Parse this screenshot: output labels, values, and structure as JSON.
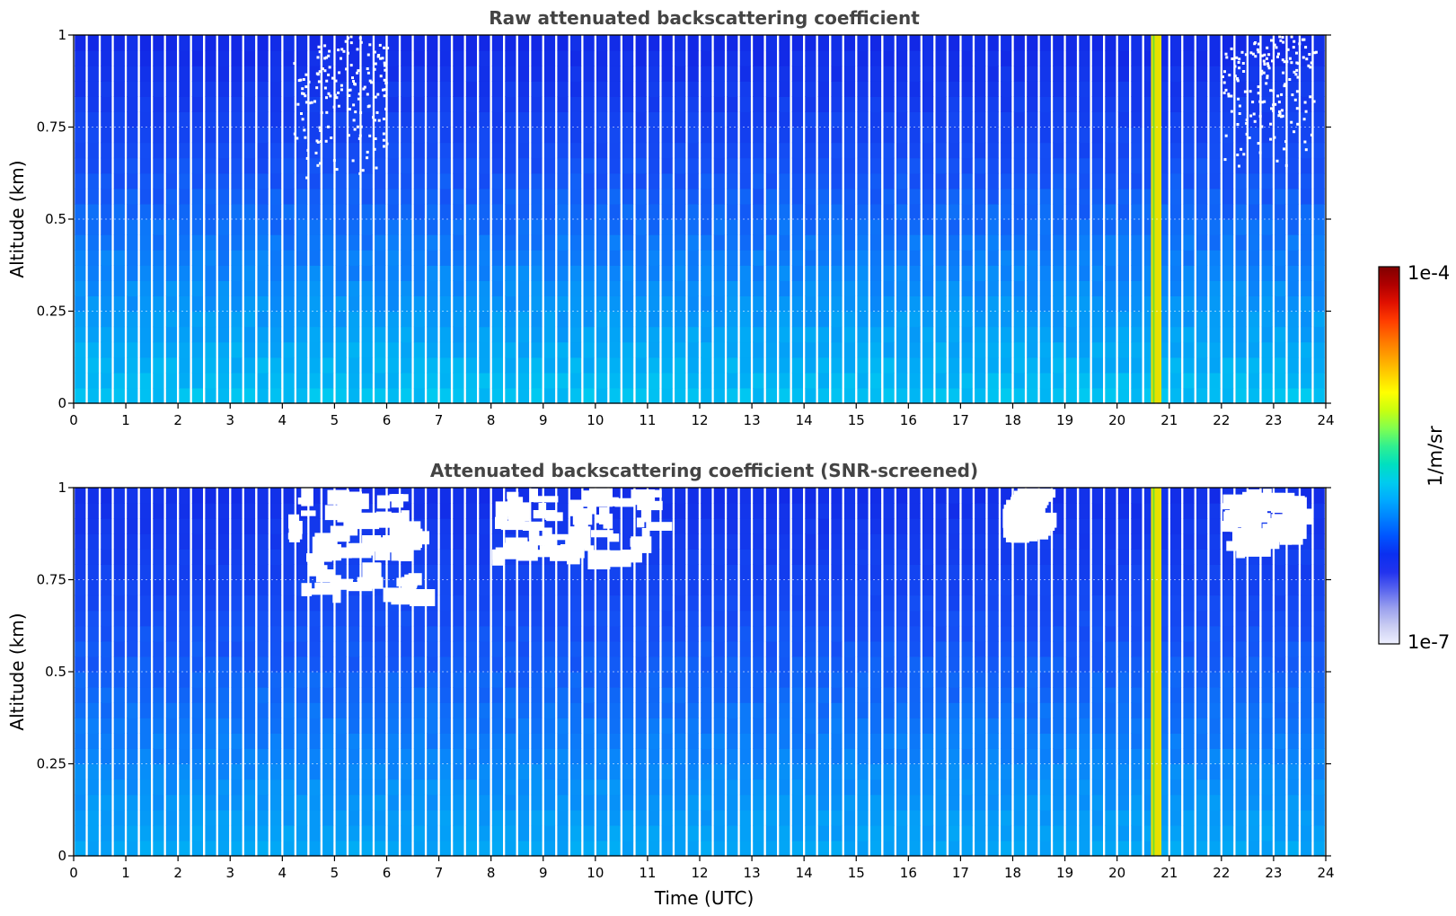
{
  "chart_data": [
    {
      "type": "heatmap",
      "title": "Raw attenuated backscattering coefficient",
      "xlabel": "",
      "ylabel": "Altitude (km)",
      "xlim": [
        0,
        24
      ],
      "ylim": [
        0,
        1
      ],
      "xticks": [
        "0",
        "1",
        "2",
        "3",
        "4",
        "5",
        "6",
        "7",
        "8",
        "9",
        "10",
        "11",
        "12",
        "13",
        "14",
        "15",
        "16",
        "17",
        "18",
        "19",
        "20",
        "21",
        "22",
        "23",
        "24"
      ],
      "yticks": [
        "0",
        "0.25",
        "0.5",
        "0.75",
        "1"
      ],
      "yticks_values": [
        0,
        0.25,
        0.5,
        0.75,
        1
      ],
      "grid": true,
      "data_end_time": 23.8,
      "profile_gaps_every_hours": 0.25,
      "features": [
        {
          "kind": "high-backscatter column",
          "time_range": [
            20.65,
            20.85
          ],
          "level": "yellow"
        },
        {
          "kind": "sparse signal / noise",
          "time_range": [
            4.2,
            6.0
          ],
          "altitude_range": [
            0.6,
            1.0
          ]
        },
        {
          "kind": "sparse signal / noise",
          "time_range": [
            22.0,
            23.8
          ],
          "altitude_range": [
            0.6,
            1.0
          ]
        }
      ]
    },
    {
      "type": "heatmap",
      "title": "Attenuated backscattering coefficient (SNR-screened)",
      "xlabel": "Time (UTC)",
      "ylabel": "Altitude (km)",
      "xlim": [
        0,
        24
      ],
      "ylim": [
        0,
        1
      ],
      "xticks": [
        "0",
        "1",
        "2",
        "3",
        "4",
        "5",
        "6",
        "7",
        "8",
        "9",
        "10",
        "11",
        "12",
        "13",
        "14",
        "15",
        "16",
        "17",
        "18",
        "19",
        "20",
        "21",
        "22",
        "23",
        "24"
      ],
      "yticks": [
        "0",
        "0.25",
        "0.5",
        "0.75",
        "1"
      ],
      "yticks_values": [
        0,
        0.25,
        0.5,
        0.75,
        1
      ],
      "grid": true,
      "data_end_time": 23.8,
      "profile_gaps_every_hours": 0.25,
      "features": [
        {
          "kind": "screened out (white)",
          "time_range": [
            4.1,
            6.5
          ],
          "altitude_range": [
            0.72,
            1.0
          ]
        },
        {
          "kind": "screened out (white)",
          "time_range": [
            8.0,
            11.0
          ],
          "altitude_range": [
            0.82,
            1.0
          ]
        },
        {
          "kind": "screened out (white)",
          "time_range": [
            17.8,
            18.4
          ],
          "altitude_range": [
            0.9,
            1.0
          ]
        },
        {
          "kind": "screened out (white)",
          "time_range": [
            22.0,
            23.3
          ],
          "altitude_range": [
            0.85,
            1.0
          ]
        },
        {
          "kind": "high-backscatter column",
          "time_range": [
            20.65,
            20.85
          ],
          "level": "yellow"
        }
      ]
    }
  ],
  "colorbar": {
    "label": "1/m/sr",
    "max_label": "1e-4",
    "min_label": "1e-7",
    "scale": "log",
    "range": [
      1e-07,
      0.0001
    ],
    "colors": [
      "#eef0ff",
      "#c9ccf2",
      "#9aa0ee",
      "#5a66ee",
      "#2233ee",
      "#0a2ff0",
      "#0055ff",
      "#0080ff",
      "#00aaff",
      "#00ccee",
      "#00e0c0",
      "#30f090",
      "#80ff50",
      "#c8ff10",
      "#ffff00",
      "#ffd000",
      "#ffa000",
      "#ff7000",
      "#ff3c00",
      "#e01000",
      "#b00000",
      "#800000"
    ]
  }
}
